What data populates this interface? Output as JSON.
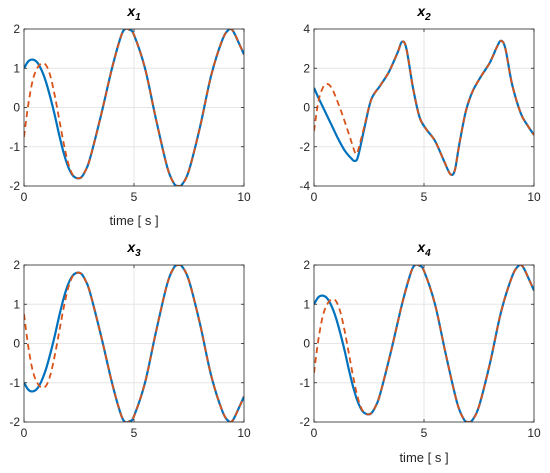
{
  "colors": {
    "solid": "#0072BD",
    "dashed": "#D95319",
    "grid": "#E6E6E6",
    "axis": "#262626"
  },
  "chart_data": [
    {
      "type": "line",
      "title": "x",
      "title_sub": "1",
      "xlabel": "time [ s ]",
      "ylabel": "",
      "xlim": [
        0,
        10
      ],
      "ylim": [
        -2,
        2
      ],
      "xticks": [
        "0",
        "5",
        "10"
      ],
      "xtick_values": [
        0,
        5,
        10
      ],
      "yticks": [
        "-2",
        "-1",
        "0",
        "1",
        "2"
      ],
      "ytick_values": [
        -2,
        -1,
        0,
        1,
        2
      ],
      "grid": true,
      "series": [
        {
          "style": "solid",
          "x": [
            0,
            0.2,
            0.4,
            0.6,
            0.8,
            1.0,
            1.2,
            1.4,
            1.6,
            1.8,
            2.0,
            2.2,
            2.4,
            2.6,
            2.8,
            3.0,
            3.5,
            4.0,
            4.4,
            4.6,
            4.8,
            5.0,
            5.5,
            6.0,
            6.5,
            6.8,
            7.0,
            7.2,
            7.5,
            8.0,
            8.5,
            9.0,
            9.3,
            9.5,
            9.8,
            10.0
          ],
          "y": [
            1.0,
            1.18,
            1.22,
            1.15,
            0.95,
            0.65,
            0.25,
            -0.2,
            -0.7,
            -1.15,
            -1.5,
            -1.72,
            -1.8,
            -1.78,
            -1.6,
            -1.3,
            -0.2,
            1.0,
            1.8,
            2.0,
            1.98,
            1.85,
            1.0,
            -0.3,
            -1.5,
            -1.92,
            -2.0,
            -1.95,
            -1.6,
            -0.5,
            0.8,
            1.7,
            1.98,
            1.95,
            1.6,
            1.35
          ]
        },
        {
          "style": "dashed",
          "x": [
            0,
            0.2,
            0.4,
            0.6,
            0.8,
            1.0,
            1.2,
            1.4,
            1.6,
            1.8,
            2.0,
            2.2,
            2.4,
            2.6,
            2.8,
            3.0,
            3.5,
            4.0,
            4.4,
            4.6,
            4.8,
            5.0,
            5.5,
            6.0,
            6.5,
            6.8,
            7.0,
            7.2,
            7.5,
            8.0,
            8.5,
            9.0,
            9.3,
            9.5,
            9.8,
            10.0
          ],
          "y": [
            -0.75,
            0.1,
            0.7,
            1.0,
            1.12,
            1.08,
            0.8,
            0.3,
            -0.3,
            -0.9,
            -1.4,
            -1.7,
            -1.8,
            -1.78,
            -1.6,
            -1.3,
            -0.2,
            1.0,
            1.8,
            2.0,
            1.98,
            1.85,
            1.0,
            -0.3,
            -1.5,
            -1.92,
            -2.0,
            -1.95,
            -1.6,
            -0.5,
            0.8,
            1.7,
            1.98,
            1.95,
            1.6,
            1.35
          ]
        }
      ]
    },
    {
      "type": "line",
      "title": "x",
      "title_sub": "2",
      "xlabel": "",
      "ylabel": "",
      "xlim": [
        0,
        10
      ],
      "ylim": [
        -4,
        4
      ],
      "xticks": [
        "0",
        "5",
        "10"
      ],
      "xtick_values": [
        0,
        5,
        10
      ],
      "yticks": [
        "-4",
        "-2",
        "0",
        "2",
        "4"
      ],
      "ytick_values": [
        -4,
        -2,
        0,
        2,
        4
      ],
      "grid": true,
      "series": [
        {
          "style": "solid",
          "x": [
            0,
            0.2,
            0.5,
            0.8,
            1.1,
            1.4,
            1.7,
            1.85,
            2.0,
            2.3,
            2.6,
            3.0,
            3.4,
            3.8,
            4.0,
            4.2,
            4.5,
            4.8,
            5.1,
            5.5,
            5.9,
            6.2,
            6.4,
            6.6,
            6.9,
            7.2,
            7.6,
            8.0,
            8.3,
            8.5,
            8.7,
            9.0,
            9.4,
            9.7,
            10.0
          ],
          "y": [
            1.0,
            0.5,
            -0.2,
            -0.9,
            -1.6,
            -2.2,
            -2.6,
            -2.72,
            -2.5,
            -1.0,
            0.4,
            1.1,
            1.8,
            2.8,
            3.35,
            3.0,
            1.0,
            -0.5,
            -1.1,
            -1.7,
            -2.7,
            -3.4,
            -3.2,
            -1.9,
            -0.2,
            0.8,
            1.6,
            2.3,
            3.05,
            3.4,
            3.0,
            1.2,
            -0.3,
            -0.9,
            -1.4
          ]
        },
        {
          "style": "dashed",
          "x": [
            0,
            0.2,
            0.4,
            0.6,
            0.8,
            1.0,
            1.3,
            1.6,
            1.8,
            1.9,
            2.0,
            2.3,
            2.6,
            3.0,
            3.4,
            3.8,
            4.0,
            4.2,
            4.5,
            4.8,
            5.1,
            5.5,
            5.9,
            6.2,
            6.4,
            6.6,
            6.9,
            7.2,
            7.6,
            8.0,
            8.3,
            8.5,
            8.7,
            9.0,
            9.4,
            9.7,
            10.0
          ],
          "y": [
            -1.2,
            0.3,
            1.0,
            1.2,
            1.0,
            0.5,
            -0.4,
            -1.4,
            -2.1,
            -2.35,
            -2.2,
            -0.9,
            0.4,
            1.1,
            1.8,
            2.8,
            3.35,
            3.0,
            1.0,
            -0.5,
            -1.1,
            -1.7,
            -2.7,
            -3.4,
            -3.2,
            -1.9,
            -0.2,
            0.8,
            1.6,
            2.3,
            3.05,
            3.4,
            3.0,
            1.2,
            -0.3,
            -0.9,
            -1.4
          ]
        }
      ]
    },
    {
      "type": "line",
      "title": "x",
      "title_sub": "3",
      "xlabel": "",
      "ylabel": "",
      "xlim": [
        0,
        10
      ],
      "ylim": [
        -2,
        2
      ],
      "xticks": [
        "0",
        "5",
        "10"
      ],
      "xtick_values": [
        0,
        5,
        10
      ],
      "yticks": [
        "-2",
        "-1",
        "0",
        "1",
        "2"
      ],
      "ytick_values": [
        -2,
        -1,
        0,
        1,
        2
      ],
      "grid": true,
      "series": [
        {
          "style": "solid",
          "x": [
            0,
            0.2,
            0.4,
            0.6,
            0.8,
            1.0,
            1.2,
            1.4,
            1.6,
            1.8,
            2.0,
            2.2,
            2.4,
            2.6,
            2.8,
            3.0,
            3.5,
            4.0,
            4.4,
            4.6,
            4.8,
            5.0,
            5.5,
            6.0,
            6.5,
            6.8,
            7.0,
            7.2,
            7.5,
            8.0,
            8.5,
            9.0,
            9.3,
            9.5,
            9.8,
            10.0
          ],
          "y": [
            -1.0,
            -1.18,
            -1.22,
            -1.15,
            -0.95,
            -0.65,
            -0.25,
            0.2,
            0.7,
            1.15,
            1.5,
            1.72,
            1.8,
            1.78,
            1.6,
            1.3,
            0.2,
            -1.0,
            -1.8,
            -2.0,
            -1.98,
            -1.85,
            -1.0,
            0.3,
            1.5,
            1.92,
            2.0,
            1.95,
            1.6,
            0.5,
            -0.8,
            -1.7,
            -1.98,
            -1.95,
            -1.6,
            -1.35
          ]
        },
        {
          "style": "dashed",
          "x": [
            0,
            0.2,
            0.4,
            0.6,
            0.8,
            1.0,
            1.2,
            1.4,
            1.6,
            1.8,
            2.0,
            2.2,
            2.4,
            2.6,
            2.8,
            3.0,
            3.5,
            4.0,
            4.4,
            4.6,
            4.8,
            5.0,
            5.5,
            6.0,
            6.5,
            6.8,
            7.0,
            7.2,
            7.5,
            8.0,
            8.5,
            9.0,
            9.3,
            9.5,
            9.8,
            10.0
          ],
          "y": [
            0.75,
            -0.1,
            -0.7,
            -1.0,
            -1.12,
            -1.08,
            -0.8,
            -0.3,
            0.3,
            0.9,
            1.4,
            1.7,
            1.8,
            1.78,
            1.6,
            1.3,
            0.2,
            -1.0,
            -1.8,
            -2.0,
            -1.98,
            -1.85,
            -1.0,
            0.3,
            1.5,
            1.92,
            2.0,
            1.95,
            1.6,
            0.5,
            -0.8,
            -1.7,
            -1.98,
            -1.95,
            -1.6,
            -1.35
          ]
        }
      ]
    },
    {
      "type": "line",
      "title": "x",
      "title_sub": "4",
      "xlabel": "time [ s ]",
      "ylabel": "",
      "xlim": [
        0,
        10
      ],
      "ylim": [
        -2,
        2
      ],
      "xticks": [
        "0",
        "5",
        "10"
      ],
      "xtick_values": [
        0,
        5,
        10
      ],
      "yticks": [
        "-2",
        "-1",
        "0",
        "1",
        "2"
      ],
      "ytick_values": [
        -2,
        -1,
        0,
        1,
        2
      ],
      "grid": true,
      "series": [
        {
          "style": "solid",
          "x": [
            0,
            0.2,
            0.4,
            0.6,
            0.8,
            1.0,
            1.2,
            1.4,
            1.6,
            1.8,
            2.0,
            2.2,
            2.4,
            2.6,
            2.8,
            3.0,
            3.5,
            4.0,
            4.4,
            4.6,
            4.8,
            5.0,
            5.5,
            6.0,
            6.5,
            6.8,
            7.0,
            7.2,
            7.5,
            8.0,
            8.5,
            9.0,
            9.3,
            9.5,
            9.8,
            10.0
          ],
          "y": [
            1.0,
            1.18,
            1.22,
            1.15,
            0.95,
            0.65,
            0.25,
            -0.2,
            -0.7,
            -1.15,
            -1.5,
            -1.72,
            -1.8,
            -1.78,
            -1.6,
            -1.3,
            -0.2,
            1.0,
            1.8,
            2.0,
            1.98,
            1.85,
            1.0,
            -0.3,
            -1.5,
            -1.92,
            -2.0,
            -1.95,
            -1.6,
            -0.5,
            0.8,
            1.7,
            1.98,
            1.95,
            1.6,
            1.35
          ]
        },
        {
          "style": "dashed",
          "x": [
            0,
            0.2,
            0.4,
            0.6,
            0.8,
            1.0,
            1.2,
            1.4,
            1.6,
            1.8,
            2.0,
            2.2,
            2.4,
            2.6,
            2.8,
            3.0,
            3.5,
            4.0,
            4.4,
            4.6,
            4.8,
            5.0,
            5.5,
            6.0,
            6.5,
            6.8,
            7.0,
            7.2,
            7.5,
            8.0,
            8.5,
            9.0,
            9.3,
            9.5,
            9.8,
            10.0
          ],
          "y": [
            -0.75,
            0.1,
            0.7,
            1.0,
            1.12,
            1.08,
            0.8,
            0.3,
            -0.3,
            -0.9,
            -1.4,
            -1.7,
            -1.8,
            -1.78,
            -1.6,
            -1.3,
            -0.2,
            1.0,
            1.8,
            2.0,
            1.98,
            1.85,
            1.0,
            -0.3,
            -1.5,
            -1.92,
            -2.0,
            -1.95,
            -1.6,
            -0.5,
            0.8,
            1.7,
            1.98,
            1.95,
            1.6,
            1.35
          ]
        }
      ]
    }
  ]
}
